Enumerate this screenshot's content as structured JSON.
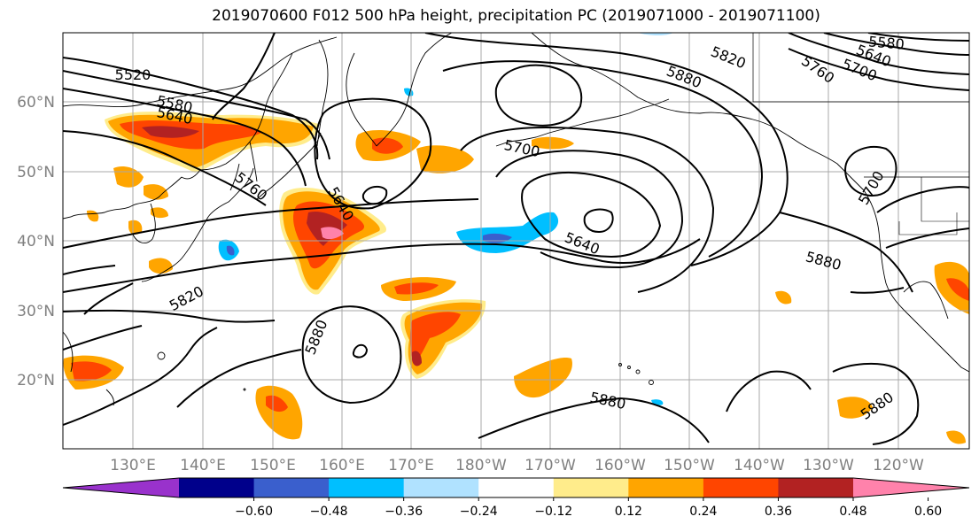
{
  "title": "2019070600 F012 500 hPa height, precipitation PC (2019071000 - 2019071100)",
  "lat_labels": [
    "60°N",
    "50°N",
    "40°N",
    "30°N",
    "20°N"
  ],
  "lon_labels": [
    "130°E",
    "140°E",
    "150°E",
    "160°E",
    "170°E",
    "180°W",
    "170°W",
    "160°W",
    "150°W",
    "140°W",
    "130°W",
    "120°W"
  ],
  "contour_labels": [
    "5520",
    "5580",
    "5640",
    "5760",
    "5640",
    "5820",
    "5880",
    "5700",
    "5640",
    "5820",
    "5880",
    "5880",
    "5760",
    "5700",
    "5640",
    "5580",
    "5700",
    "5880",
    "5880"
  ],
  "colorbar": {
    "colors": [
      "#9932cc",
      "#00008b",
      "#3a5fcd",
      "#00bfff",
      "#b0e2ff",
      "#ffffff",
      "#ffec8b",
      "#ffa500",
      "#ff4500",
      "#b22222",
      "#ff82ab"
    ],
    "ticks": [
      "−0.60",
      "−0.48",
      "−0.36",
      "−0.24",
      "−0.12",
      "0.12",
      "0.24",
      "0.36",
      "0.48",
      "0.60"
    ]
  }
}
